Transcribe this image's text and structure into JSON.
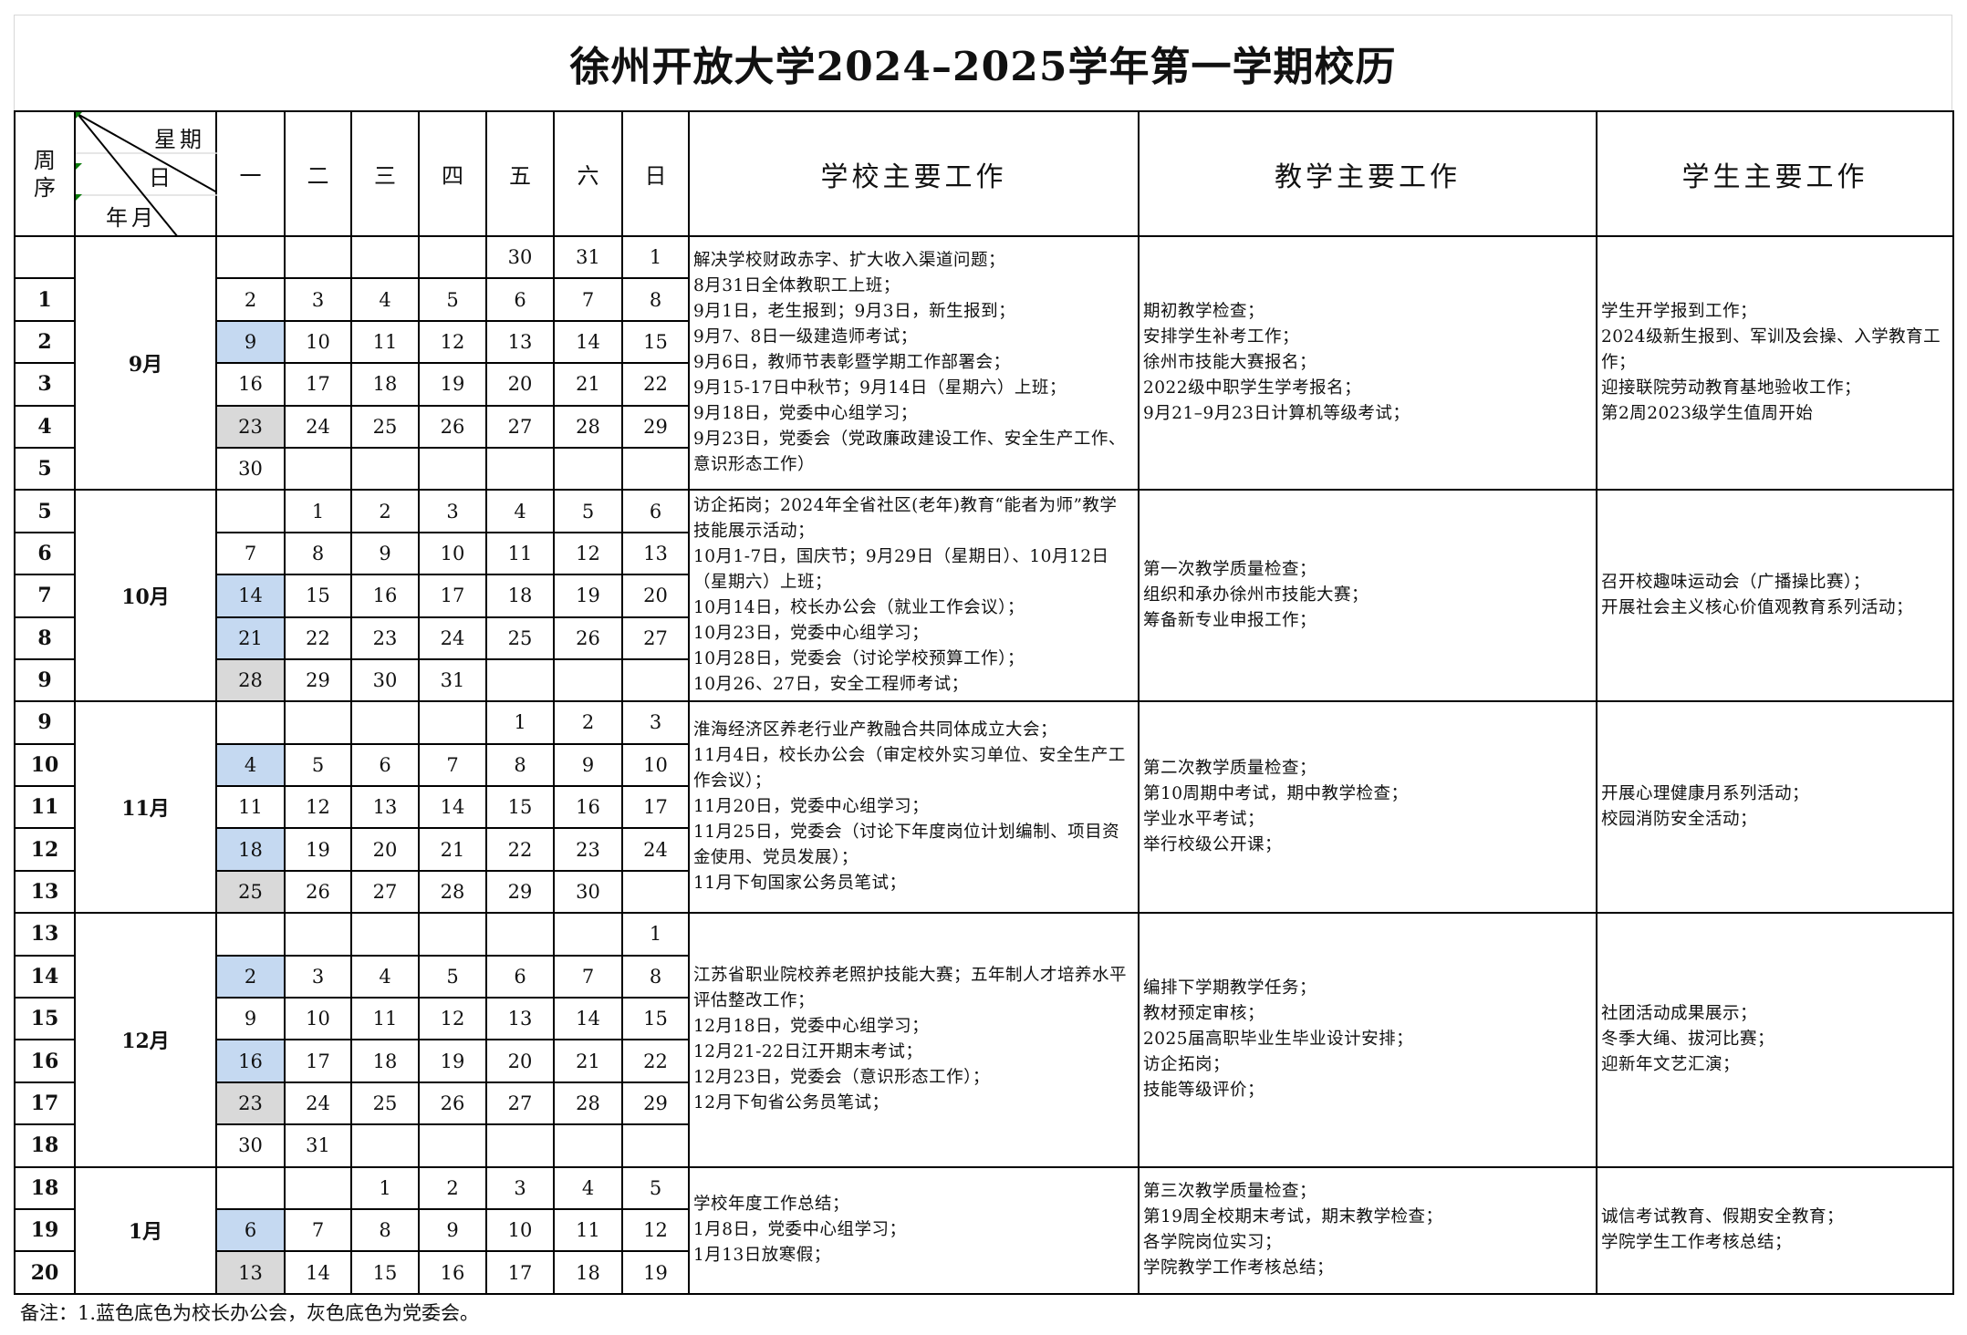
{
  "title": "徐州开放大学2024–2025学年第一学期校历",
  "header": {
    "week_col": "周序",
    "diag_weekday": "星期",
    "diag_day": "日",
    "diag_month": "年月",
    "weekdays": [
      "一",
      "二",
      "三",
      "四",
      "五",
      "六",
      "日"
    ],
    "school": "学校主要工作",
    "teaching": "教学主要工作",
    "student": "学生主要工作"
  },
  "colors": {
    "blue": "#c5d9f1",
    "gray": "#d9d9d9"
  },
  "months": [
    {
      "label": "9月",
      "weeks": [
        {
          "week": "",
          "days": [
            "",
            "",
            "",
            "",
            "30",
            "31",
            "1"
          ]
        },
        {
          "week": "1",
          "days": [
            "2",
            "3",
            "4",
            "5",
            "6",
            "7",
            "8"
          ]
        },
        {
          "week": "2",
          "days": [
            "9",
            "10",
            "11",
            "12",
            "13",
            "14",
            "15"
          ],
          "mark": "blue"
        },
        {
          "week": "3",
          "days": [
            "16",
            "17",
            "18",
            "19",
            "20",
            "21",
            "22"
          ]
        },
        {
          "week": "4",
          "days": [
            "23",
            "24",
            "25",
            "26",
            "27",
            "28",
            "29"
          ],
          "mark": "gray"
        },
        {
          "week": "5",
          "days": [
            "30",
            "",
            "",
            "",
            "",
            "",
            ""
          ]
        }
      ],
      "school": [
        "解决学校财政赤字、扩大收入渠道问题；",
        "8月31日全体教职工上班；",
        "9月1日，老生报到；9月3日，新生报到；",
        "9月7、8日一级建造师考试；",
        "9月6日，教师节表彰暨学期工作部署会；",
        "9月15-17日中秋节；9月14日（星期六）上班；",
        "9月18日，党委中心组学习；",
        "9月23日，党委会（党政廉政建设工作、安全生产工作、意识形态工作）"
      ],
      "teaching": [
        "期初教学检查；",
        "安排学生补考工作；",
        "徐州市技能大赛报名；",
        "2022级中职学生学考报名；",
        "9月21–9月23日计算机等级考试；"
      ],
      "student": [
        "学生开学报到工作；",
        "2024级新生报到、军训及会操、入学教育工作；",
        "迎接联院劳动教育基地验收工作；",
        "第2周2023级学生值周开始"
      ]
    },
    {
      "label": "10月",
      "weeks": [
        {
          "week": "5",
          "days": [
            "",
            "1",
            "2",
            "3",
            "4",
            "5",
            "6"
          ]
        },
        {
          "week": "6",
          "days": [
            "7",
            "8",
            "9",
            "10",
            "11",
            "12",
            "13"
          ]
        },
        {
          "week": "7",
          "days": [
            "14",
            "15",
            "16",
            "17",
            "18",
            "19",
            "20"
          ],
          "mark": "blue"
        },
        {
          "week": "8",
          "days": [
            "21",
            "22",
            "23",
            "24",
            "25",
            "26",
            "27"
          ],
          "mark": "blue"
        },
        {
          "week": "9",
          "days": [
            "28",
            "29",
            "30",
            "31",
            "",
            "",
            ""
          ],
          "mark": "gray"
        }
      ],
      "school": [
        "访企拓岗；2024年全省社区(老年)教育“能者为师”教学技能展示活动；",
        "10月1-7日，国庆节；9月29日（星期日）、10月12日（星期六）上班；",
        "10月14日，校长办公会（就业工作会议）；",
        "10月23日，党委中心组学习；",
        "10月28日，党委会（讨论学校预算工作）；",
        "10月26、27日，安全工程师考试；"
      ],
      "teaching": [
        "第一次教学质量检查；",
        "组织和承办徐州市技能大赛；",
        "筹备新专业申报工作；"
      ],
      "student": [
        "召开校趣味运动会（广播操比赛）；",
        "开展社会主义核心价值观教育系列活动；"
      ]
    },
    {
      "label": "11月",
      "weeks": [
        {
          "week": "9",
          "days": [
            "",
            "",
            "",
            "",
            "1",
            "2",
            "3"
          ]
        },
        {
          "week": "10",
          "days": [
            "4",
            "5",
            "6",
            "7",
            "8",
            "9",
            "10"
          ],
          "mark": "blue"
        },
        {
          "week": "11",
          "days": [
            "11",
            "12",
            "13",
            "14",
            "15",
            "16",
            "17"
          ]
        },
        {
          "week": "12",
          "days": [
            "18",
            "19",
            "20",
            "21",
            "22",
            "23",
            "24"
          ],
          "mark": "blue"
        },
        {
          "week": "13",
          "days": [
            "25",
            "26",
            "27",
            "28",
            "29",
            "30",
            ""
          ],
          "mark": "gray"
        }
      ],
      "school": [
        "淮海经济区养老行业产教融合共同体成立大会；",
        "11月4日，校长办公会（审定校外实习单位、安全生产工作会议）；",
        "11月20日，党委中心组学习；",
        "11月25日，党委会（讨论下年度岗位计划编制、项目资金使用、党员发展）；",
        "11月下旬国家公务员笔试；"
      ],
      "teaching": [
        "第二次教学质量检查；",
        "第10周期中考试，期中教学检查；",
        "学业水平考试；",
        "举行校级公开课；"
      ],
      "student": [
        "开展心理健康月系列活动；",
        "校园消防安全活动；"
      ]
    },
    {
      "label": "12月",
      "weeks": [
        {
          "week": "13",
          "days": [
            "",
            "",
            "",
            "",
            "",
            "",
            "1"
          ]
        },
        {
          "week": "14",
          "days": [
            "2",
            "3",
            "4",
            "5",
            "6",
            "7",
            "8"
          ],
          "mark": "blue"
        },
        {
          "week": "15",
          "days": [
            "9",
            "10",
            "11",
            "12",
            "13",
            "14",
            "15"
          ]
        },
        {
          "week": "16",
          "days": [
            "16",
            "17",
            "18",
            "19",
            "20",
            "21",
            "22"
          ],
          "mark": "blue"
        },
        {
          "week": "17",
          "days": [
            "23",
            "24",
            "25",
            "26",
            "27",
            "28",
            "29"
          ],
          "mark": "gray"
        },
        {
          "week": "18",
          "days": [
            "30",
            "31",
            "",
            "",
            "",
            "",
            ""
          ]
        }
      ],
      "school": [
        "江苏省职业院校养老照护技能大赛；五年制人才培养水平评估整改工作；",
        "12月18日，党委中心组学习；",
        "12月21-22日江开期末考试；",
        "12月23日，党委会（意识形态工作）；",
        "12月下旬省公务员笔试；"
      ],
      "teaching": [
        "编排下学期教学任务；",
        "教材预定审核；",
        "2025届高职毕业生毕业设计安排；",
        "访企拓岗；",
        "技能等级评价；"
      ],
      "student": [
        "社团活动成果展示；",
        "冬季大绳、拔河比赛；",
        "迎新年文艺汇演；"
      ]
    },
    {
      "label": "1月",
      "weeks": [
        {
          "week": "18",
          "days": [
            "",
            "",
            "1",
            "2",
            "3",
            "4",
            "5"
          ]
        },
        {
          "week": "19",
          "days": [
            "6",
            "7",
            "8",
            "9",
            "10",
            "11",
            "12"
          ],
          "mark": "blue"
        },
        {
          "week": "20",
          "days": [
            "13",
            "14",
            "15",
            "16",
            "17",
            "18",
            "19"
          ],
          "mark": "gray"
        }
      ],
      "school": [
        "学校年度工作总结；",
        "1月8日，党委中心组学习；",
        "1月13日放寒假；"
      ],
      "teaching": [
        "第三次教学质量检查；",
        "第19周全校期末考试，期末教学检查；",
        "各学院岗位实习；",
        "学院教学工作考核总结；"
      ],
      "student": [
        "诚信考试教育、假期安全教育；",
        "学院学生工作考核总结；"
      ]
    }
  ],
  "note": "备注：1.蓝色底色为校长办公会，灰色底色为党委会。"
}
